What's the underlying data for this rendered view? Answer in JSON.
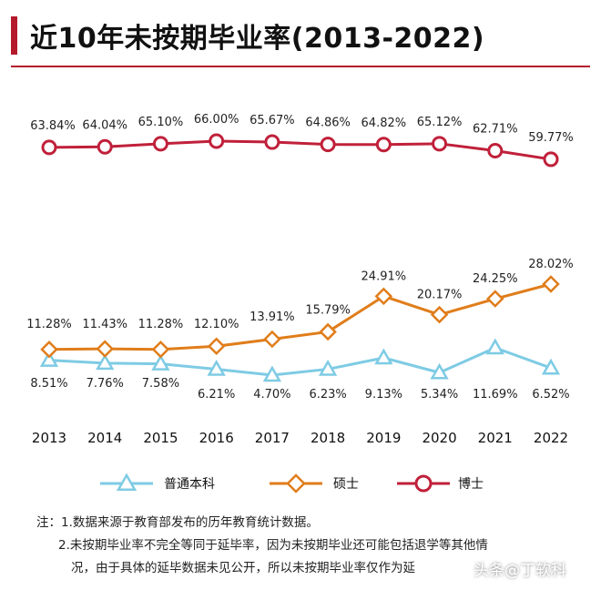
{
  "title": "近10年未按期毕业率(2013-2022)",
  "chart_data": {
    "type": "line",
    "title": "近10年未按期毕业率(2013-2022)",
    "categories": [
      "2013",
      "2014",
      "2015",
      "2016",
      "2017",
      "2018",
      "2019",
      "2020",
      "2021",
      "2022"
    ],
    "series": [
      {
        "name": "普通本科",
        "marker": "triangle",
        "color": "#7ecbe4",
        "values": [
          8.51,
          7.76,
          7.58,
          6.21,
          4.7,
          6.23,
          9.13,
          5.34,
          11.69,
          6.52
        ],
        "labels": [
          "8.51%",
          "7.76%",
          "7.58%",
          "6.21%",
          "4.70%",
          "6.23%",
          "9.13%",
          "5.34%",
          "11.69%",
          "6.52%"
        ]
      },
      {
        "name": "硕士",
        "marker": "diamond",
        "color": "#e07d1a",
        "values": [
          11.28,
          11.43,
          11.28,
          12.1,
          13.91,
          15.79,
          24.91,
          20.17,
          24.25,
          28.02
        ],
        "labels": [
          "11.28%",
          "11.43%",
          "11.28%",
          "12.10%",
          "13.91%",
          "15.79%",
          "24.91%",
          "20.17%",
          "24.25%",
          "28.02%"
        ]
      },
      {
        "name": "博士",
        "marker": "circle",
        "color": "#c0203a",
        "values": [
          63.84,
          64.04,
          65.1,
          66.0,
          65.67,
          64.86,
          64.82,
          65.12,
          62.71,
          59.77
        ],
        "labels": [
          "63.84%",
          "64.04%",
          "65.10%",
          "66.00%",
          "65.67%",
          "64.86%",
          "64.82%",
          "65.12%",
          "62.71%",
          "59.77%"
        ]
      }
    ],
    "legend_position": "bottom",
    "grid": false
  },
  "notes": {
    "line1": "注：1.数据来源于教育部发布的历年教育统计数据。",
    "line2": "2.未按期毕业率不完全等同于延毕率，因为未按期毕业还可能包括退学等其他情",
    "line3": "况，由于具体的延毕数据未见公开，所以未按期毕业率仅作为延",
    "watermark": "头条@丁软科"
  },
  "colors": {
    "accent": "#b5192c"
  }
}
